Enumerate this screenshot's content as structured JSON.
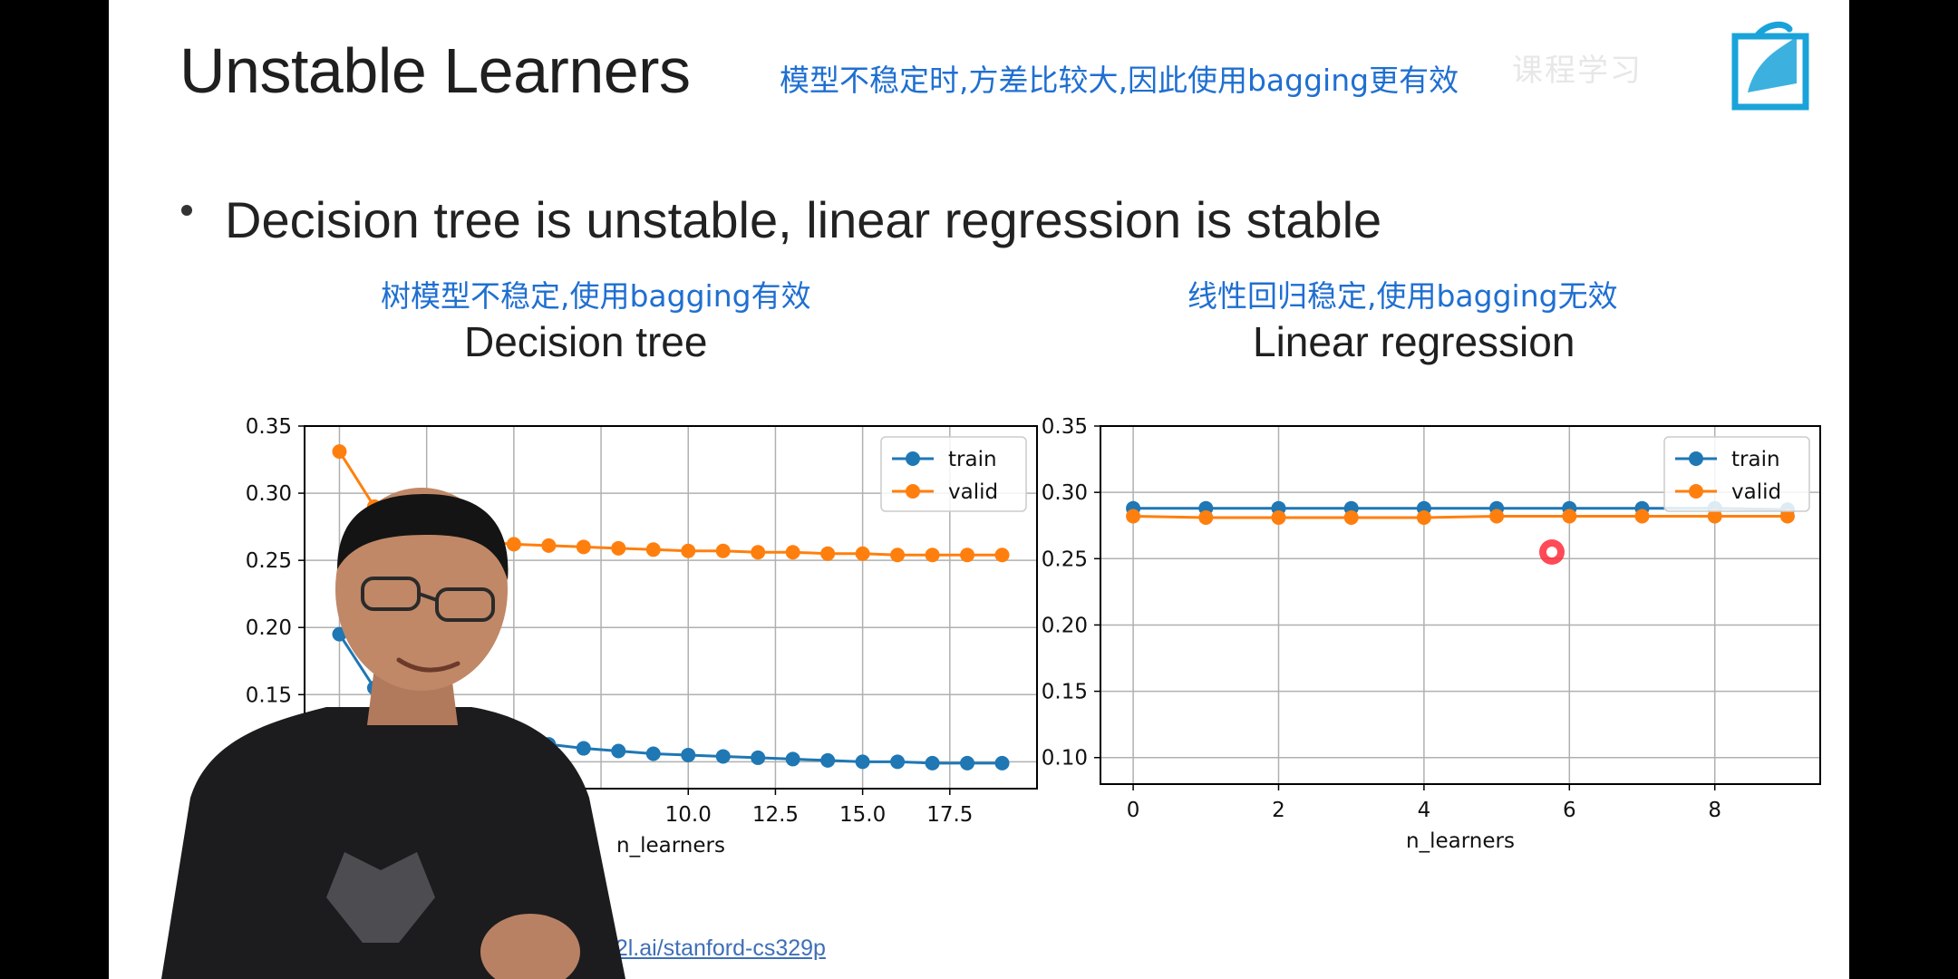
{
  "slide": {
    "title": "Unstable Learners",
    "annotation_top": "模型不稳定时,方差比较大,因此使用bagging更有效",
    "bullet": "Decision tree is unstable, linear regression is stable",
    "annotation_left": "树模型不稳定,使用bagging有效",
    "annotation_right": "线性回归稳定,使用bagging无效",
    "link": ".d2l.ai/stanford-cs329p",
    "watermark": "课程学习"
  },
  "colors": {
    "train": "#1f77b4",
    "valid": "#ff7f0e",
    "annotation": "#1f6fd1",
    "grid": "#b0b0b0",
    "logo": "#1aa3d9"
  },
  "chart_data": [
    {
      "type": "line",
      "title": "Decision tree",
      "xlabel": "n_learners",
      "ylabel": "",
      "xlim": [
        -1,
        20
      ],
      "ylim": [
        0.08,
        0.35
      ],
      "xticks": [
        10.0,
        12.5,
        15.0,
        17.5
      ],
      "xtick_labels": [
        "10.0",
        "12.5",
        "15.0",
        "17.5"
      ],
      "yticks": [
        0.15,
        0.2,
        0.25,
        0.3,
        0.35
      ],
      "ytick_labels": [
        "0.15",
        "0.20",
        "0.25",
        "0.30",
        "0.35"
      ],
      "grid": true,
      "legend": "top-right",
      "x": [
        0,
        1,
        2,
        3,
        4,
        5,
        6,
        7,
        8,
        9,
        10,
        11,
        12,
        13,
        14,
        15,
        16,
        17,
        18,
        19
      ],
      "series": [
        {
          "name": "train",
          "values": [
            0.195,
            0.155,
            0.14,
            0.13,
            0.125,
            0.117,
            0.113,
            0.11,
            0.108,
            0.106,
            0.105,
            0.104,
            0.103,
            0.102,
            0.101,
            0.1,
            0.1,
            0.099,
            0.099,
            0.099
          ]
        },
        {
          "name": "valid",
          "values": [
            0.331,
            0.29,
            0.275,
            0.268,
            0.264,
            0.262,
            0.261,
            0.26,
            0.259,
            0.258,
            0.257,
            0.257,
            0.256,
            0.256,
            0.255,
            0.255,
            0.254,
            0.254,
            0.254,
            0.254
          ]
        }
      ]
    },
    {
      "type": "line",
      "title": "Linear regression",
      "xlabel": "n_learners",
      "ylabel": "",
      "xlim": [
        -0.45,
        9.45
      ],
      "ylim": [
        0.08,
        0.35
      ],
      "xticks": [
        0,
        2,
        4,
        6,
        8
      ],
      "xtick_labels": [
        "0",
        "2",
        "4",
        "6",
        "8"
      ],
      "yticks": [
        0.1,
        0.15,
        0.2,
        0.25,
        0.3,
        0.35
      ],
      "ytick_labels": [
        "0.10",
        "0.15",
        "0.20",
        "0.25",
        "0.30",
        "0.35"
      ],
      "grid": true,
      "legend": "top-right",
      "x": [
        0,
        1,
        2,
        3,
        4,
        5,
        6,
        7,
        8,
        9
      ],
      "series": [
        {
          "name": "train",
          "values": [
            0.288,
            0.288,
            0.288,
            0.288,
            0.288,
            0.288,
            0.288,
            0.288,
            0.288,
            0.287
          ]
        },
        {
          "name": "valid",
          "values": [
            0.282,
            0.281,
            0.281,
            0.281,
            0.281,
            0.282,
            0.282,
            0.282,
            0.282,
            0.282
          ]
        }
      ]
    }
  ]
}
